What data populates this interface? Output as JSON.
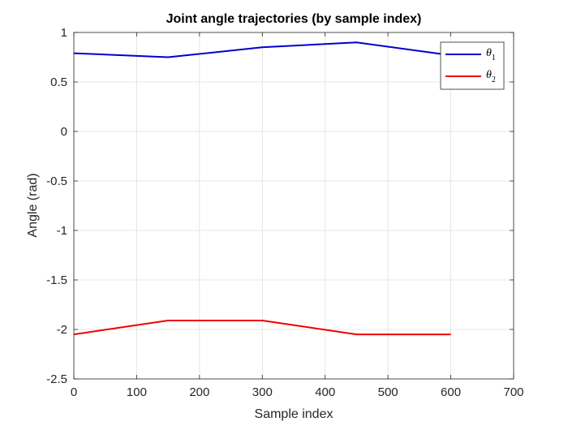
{
  "chart_data": {
    "type": "line",
    "title": "Joint angle trajectories (by sample index)",
    "xlabel": "Sample index",
    "ylabel": "Angle (rad)",
    "xlim": [
      0,
      700
    ],
    "ylim": [
      -2.5,
      1
    ],
    "xticks": [
      0,
      100,
      200,
      300,
      400,
      500,
      600,
      700
    ],
    "yticks": [
      -2.5,
      -2,
      -1.5,
      -1,
      -0.5,
      0,
      0.5,
      1
    ],
    "ytick_labels": [
      "-2.5",
      "-2",
      "-1.5",
      "-1",
      "-0.5",
      "0",
      "0.5",
      "1"
    ],
    "grid": true,
    "legend_position": "top-right",
    "series": [
      {
        "name": "θ1",
        "legend_base": "θ",
        "legend_sub": "1",
        "color": "#0000cc",
        "x": [
          0,
          150,
          300,
          450,
          600
        ],
        "y": [
          0.79,
          0.75,
          0.85,
          0.9,
          0.77
        ]
      },
      {
        "name": "θ2",
        "legend_base": "θ",
        "legend_sub": "2",
        "color": "#ee0000",
        "x": [
          0,
          150,
          300,
          450,
          600
        ],
        "y": [
          -2.05,
          -1.91,
          -1.91,
          -2.05,
          -2.05
        ]
      }
    ]
  }
}
